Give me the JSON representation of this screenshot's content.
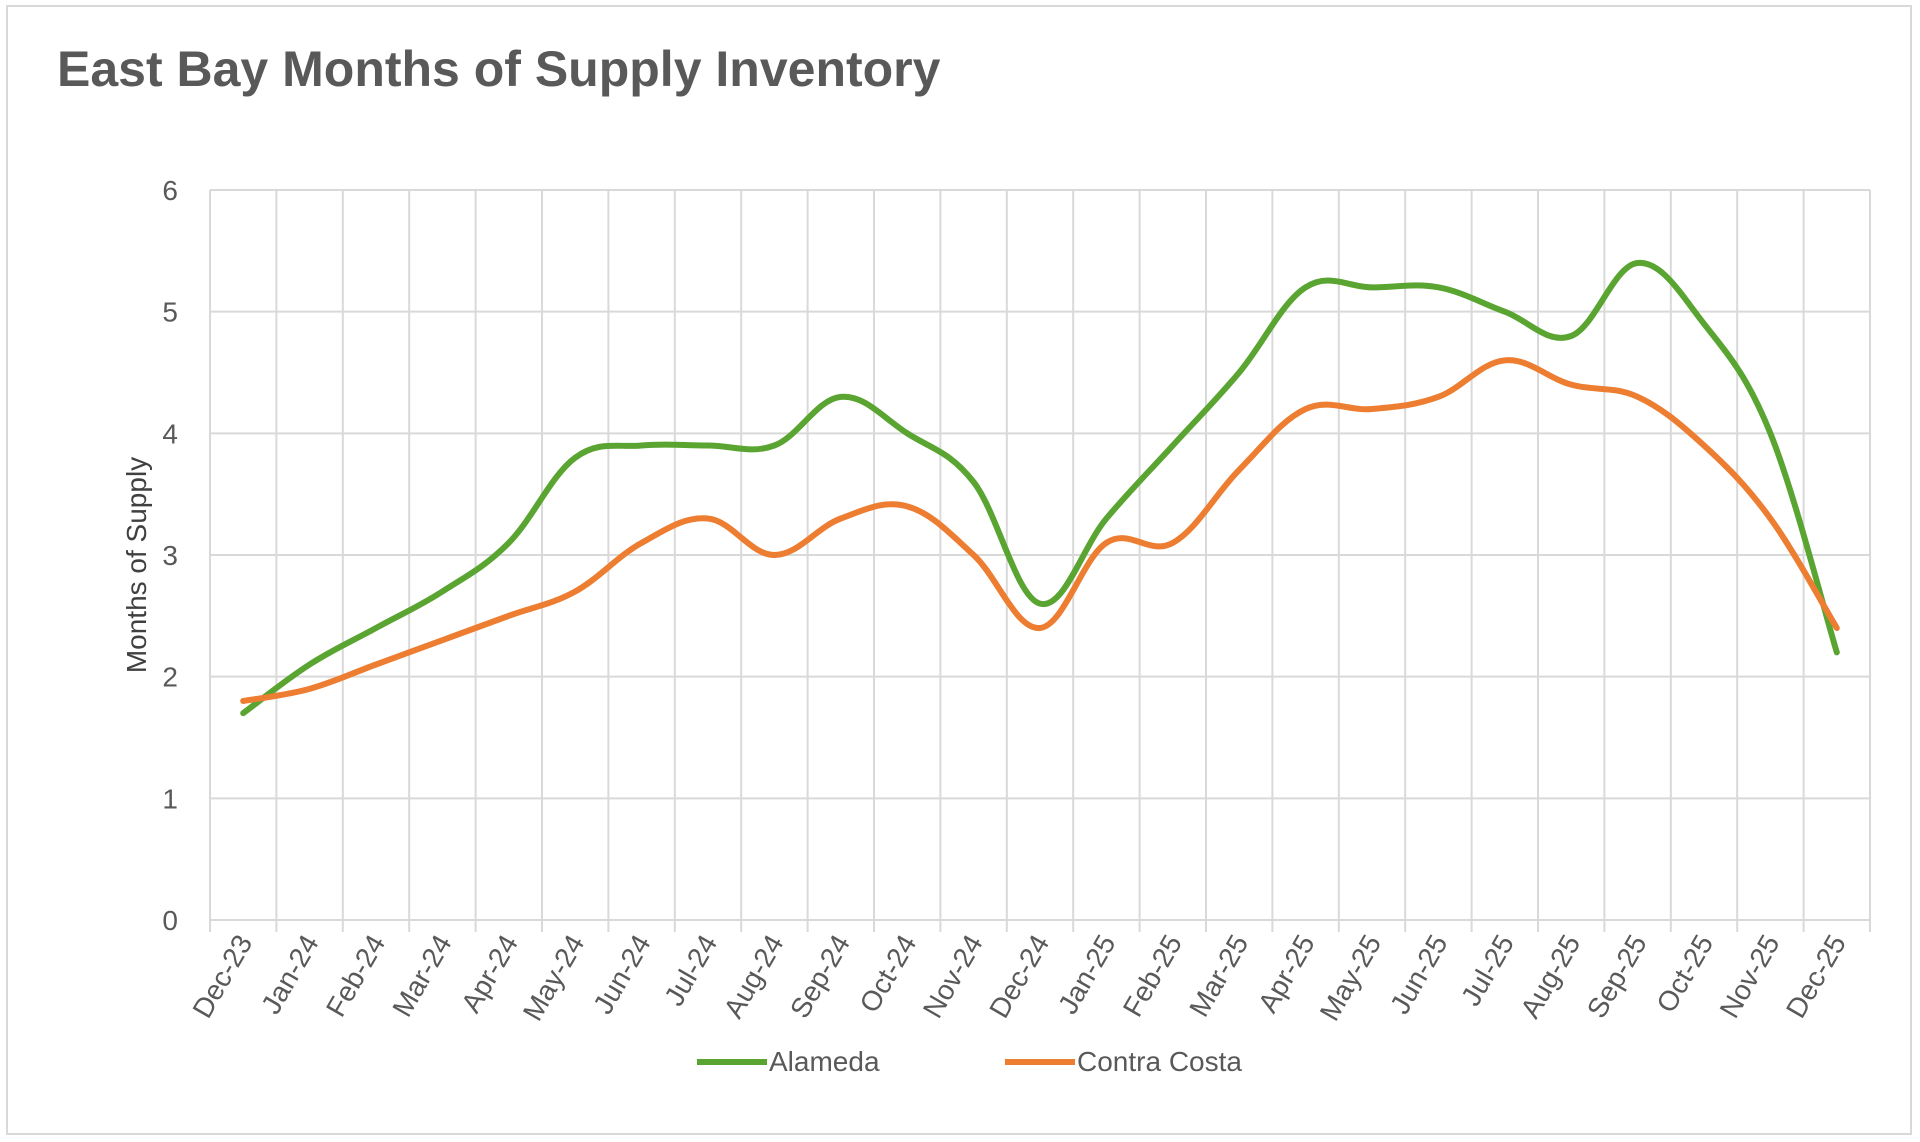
{
  "chart_data": {
    "type": "line",
    "title": "East Bay Months of Supply Inventory",
    "xlabel": "",
    "ylabel": "Months of Supply",
    "ylim": [
      0,
      6
    ],
    "yticks": [
      "0",
      "1",
      "2",
      "3",
      "4",
      "5",
      "6"
    ],
    "categories": [
      "Dec-23",
      "Jan-24",
      "Feb-24",
      "Mar-24",
      "Apr-24",
      "May-24",
      "Jun-24",
      "Jul-24",
      "Aug-24",
      "Sep-24",
      "Oct-24",
      "Nov-24",
      "Dec-24",
      "Jan-25",
      "Feb-25",
      "Mar-25",
      "Apr-25",
      "May-25",
      "Jun-25",
      "Jul-25",
      "Aug-25",
      "Sep-25",
      "Oct-25",
      "Nov-25",
      "Dec-25"
    ],
    "grid": true,
    "legend_position": "bottom",
    "series": [
      {
        "name": "Alameda",
        "color": "#5aa532",
        "values": [
          1.7,
          2.1,
          2.4,
          2.7,
          3.1,
          3.8,
          3.9,
          3.9,
          3.9,
          4.3,
          4.0,
          3.6,
          2.6,
          3.3,
          3.9,
          4.5,
          5.2,
          5.2,
          5.2,
          5.0,
          4.8,
          5.4,
          4.9,
          4.0,
          2.2
        ]
      },
      {
        "name": "Contra Costa",
        "color": "#ed7d31",
        "values": [
          1.8,
          1.9,
          2.1,
          2.3,
          2.5,
          2.7,
          3.1,
          3.3,
          3.0,
          3.3,
          3.4,
          3.0,
          2.4,
          3.1,
          3.1,
          3.7,
          4.2,
          4.2,
          4.3,
          4.6,
          4.4,
          4.3,
          3.9,
          3.3,
          2.4
        ]
      }
    ]
  }
}
